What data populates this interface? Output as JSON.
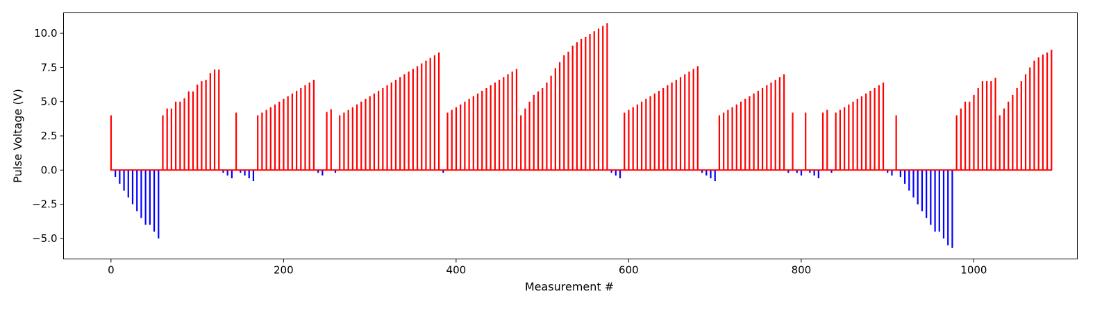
{
  "chart_data": {
    "type": "bar",
    "title": "",
    "xlabel": "Measurement #",
    "ylabel": "Pulse Voltage (V)",
    "xlim": [
      -55,
      1120
    ],
    "ylim": [
      -6.5,
      11.5
    ],
    "xticks": [
      0,
      200,
      400,
      600,
      800,
      1000
    ],
    "yticks": [
      -5.0,
      -2.5,
      0.0,
      2.5,
      5.0,
      7.5,
      10.0
    ],
    "xtick_labels": [
      "0",
      "200",
      "400",
      "600",
      "800",
      "1000"
    ],
    "ytick_labels": [
      "−5.0",
      "−2.5",
      "0.0",
      "2.5",
      "5.0",
      "7.5",
      "10.0"
    ],
    "grid": false,
    "colors": {
      "positive": "#ff0000",
      "negative": "#0000ff"
    },
    "x": [
      0,
      5,
      10,
      15,
      20,
      25,
      30,
      35,
      40,
      45,
      50,
      55,
      60,
      65,
      70,
      75,
      80,
      85,
      90,
      95,
      100,
      105,
      110,
      115,
      120,
      125,
      130,
      135,
      140,
      145,
      150,
      155,
      160,
      165,
      170,
      175,
      180,
      185,
      190,
      195,
      200,
      205,
      210,
      215,
      220,
      225,
      230,
      235,
      240,
      245,
      250,
      255,
      260,
      265,
      270,
      275,
      280,
      285,
      290,
      295,
      300,
      305,
      310,
      315,
      320,
      325,
      330,
      335,
      340,
      345,
      350,
      355,
      360,
      365,
      370,
      375,
      380,
      385,
      390,
      395,
      400,
      405,
      410,
      415,
      420,
      425,
      430,
      435,
      440,
      445,
      450,
      455,
      460,
      465,
      470,
      475,
      480,
      485,
      490,
      495,
      500,
      505,
      510,
      515,
      520,
      525,
      530,
      535,
      540,
      545,
      550,
      555,
      560,
      565,
      570,
      575,
      580,
      585,
      590,
      595,
      600,
      605,
      610,
      615,
      620,
      625,
      630,
      635,
      640,
      645,
      650,
      655,
      660,
      665,
      670,
      675,
      680,
      685,
      690,
      695,
      700,
      705,
      710,
      715,
      720,
      725,
      730,
      735,
      740,
      745,
      750,
      755,
      760,
      765,
      770,
      775,
      780,
      785,
      790,
      795,
      800,
      805,
      810,
      815,
      820,
      825,
      830,
      835,
      840,
      845,
      850,
      855,
      860,
      865,
      870,
      875,
      880,
      885,
      890,
      895,
      900,
      905,
      910,
      915,
      920,
      925,
      930,
      935,
      940,
      945,
      950,
      955,
      960,
      965,
      970,
      975,
      980,
      985,
      990,
      995,
      1000,
      1005,
      1010,
      1015,
      1020,
      1025,
      1030,
      1035,
      1040,
      1045,
      1050,
      1055,
      1060,
      1065,
      1070,
      1075,
      1080,
      1085,
      1090
    ],
    "y": [
      4.0,
      -0.5,
      -1.0,
      -1.5,
      -2.0,
      -2.5,
      -3.0,
      -3.5,
      -4.0,
      -4.0,
      -4.5,
      -5.0,
      4.0,
      4.5,
      4.5,
      5.0,
      5.0,
      5.25,
      5.75,
      5.75,
      6.25,
      6.5,
      6.6,
      7.1,
      7.35,
      7.35,
      -0.2,
      -0.4,
      -0.6,
      4.2,
      -0.2,
      -0.4,
      -0.6,
      -0.8,
      4.0,
      4.2,
      4.4,
      4.6,
      4.8,
      5.0,
      5.2,
      5.4,
      5.6,
      5.8,
      6.0,
      6.2,
      6.4,
      6.6,
      -0.2,
      -0.4,
      4.25,
      4.45,
      -0.2,
      4.0,
      4.2,
      4.4,
      4.6,
      4.8,
      5.0,
      5.2,
      5.4,
      5.6,
      5.8,
      6.0,
      6.2,
      6.4,
      6.6,
      6.8,
      7.0,
      7.2,
      7.4,
      7.6,
      7.8,
      8.0,
      8.2,
      8.4,
      8.6,
      -0.2,
      4.2,
      4.4,
      4.6,
      4.8,
      5.0,
      5.2,
      5.4,
      5.6,
      5.8,
      6.0,
      6.2,
      6.4,
      6.6,
      6.8,
      7.0,
      7.2,
      7.4,
      4.0,
      4.5,
      5.0,
      5.5,
      5.75,
      6.0,
      6.4,
      6.9,
      7.45,
      7.9,
      8.4,
      8.65,
      9.1,
      9.35,
      9.6,
      9.75,
      9.95,
      10.15,
      10.35,
      10.55,
      10.75,
      -0.2,
      -0.4,
      -0.6,
      4.2,
      4.4,
      4.6,
      4.8,
      5.0,
      5.2,
      5.4,
      5.6,
      5.8,
      6.0,
      6.2,
      6.4,
      6.6,
      6.8,
      7.0,
      7.2,
      7.4,
      7.6,
      -0.2,
      -0.4,
      -0.6,
      -0.8,
      4.0,
      4.2,
      4.4,
      4.6,
      4.8,
      5.0,
      5.2,
      5.4,
      5.6,
      5.8,
      6.0,
      6.2,
      6.4,
      6.6,
      6.8,
      7.0,
      -0.2,
      4.2,
      -0.2,
      -0.4,
      4.2,
      -0.2,
      -0.4,
      -0.6,
      4.2,
      4.4,
      -0.2,
      4.2,
      4.4,
      4.6,
      4.8,
      5.0,
      5.2,
      5.4,
      5.6,
      5.8,
      6.0,
      6.2,
      6.4,
      -0.2,
      -0.4,
      4.0,
      -0.5,
      -1.0,
      -1.5,
      -2.0,
      -2.5,
      -3.0,
      -3.5,
      -4.0,
      -4.5,
      -4.5,
      -5.0,
      -5.5,
      -5.7,
      4.0,
      4.5,
      5.0,
      5.0,
      5.5,
      6.0,
      6.5,
      6.5,
      6.5,
      6.75,
      4.0,
      4.5,
      5.0,
      5.5,
      6.0,
      6.5,
      7.0,
      7.5,
      8.0,
      8.25,
      8.45,
      8.6,
      8.8
    ]
  }
}
